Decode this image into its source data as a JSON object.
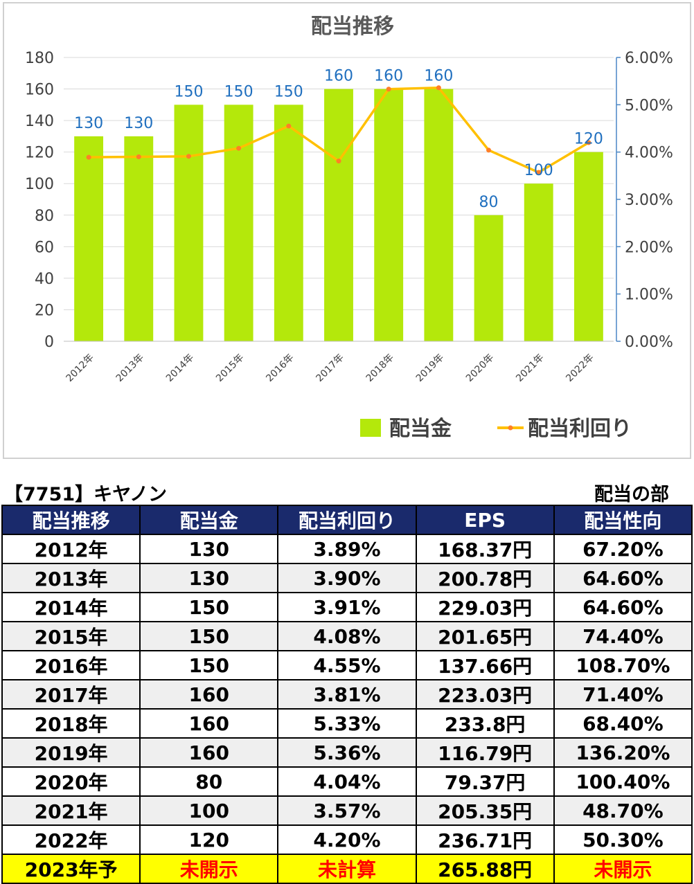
{
  "chart_data": {
    "type": "bar",
    "title": "配当推移",
    "categories": [
      "2012年",
      "2013年",
      "2014年",
      "2015年",
      "2016年",
      "2017年",
      "2018年",
      "2019年",
      "2020年",
      "2021年",
      "2022年"
    ],
    "series": [
      {
        "name": "配当金",
        "type": "bar",
        "axis": "left",
        "color": "#b4e80b",
        "values": [
          130,
          130,
          150,
          150,
          150,
          160,
          160,
          160,
          80,
          100,
          120
        ]
      },
      {
        "name": "配当利回り",
        "type": "line",
        "axis": "right",
        "color": "#ffc000",
        "marker_color": "#ff7f27",
        "values": [
          3.89,
          3.9,
          3.91,
          4.08,
          4.55,
          3.81,
          5.33,
          5.36,
          4.04,
          3.57,
          4.2
        ]
      }
    ],
    "left_axis": {
      "min": 0,
      "max": 180,
      "step": 20,
      "ticks": [
        "0",
        "20",
        "40",
        "60",
        "80",
        "100",
        "120",
        "140",
        "160",
        "180"
      ]
    },
    "right_axis": {
      "min": 0,
      "max": 6,
      "step": 1,
      "ticks": [
        "0.00%",
        "1.00%",
        "2.00%",
        "3.00%",
        "4.00%",
        "5.00%",
        "6.00%"
      ]
    },
    "grid": true,
    "legend_position": "bottom-right",
    "data_labels": [
      "130",
      "130",
      "150",
      "150",
      "150",
      "160",
      "160",
      "160",
      "80",
      "100",
      "120"
    ]
  },
  "table": {
    "code_title": "【7751】キヤノン",
    "section_title": "配当の部",
    "headers": [
      "配当推移",
      "配当金",
      "配当利回り",
      "EPS",
      "配当性向"
    ],
    "rows": [
      [
        "2012年",
        "130",
        "3.89%",
        "168.37円",
        "67.20%"
      ],
      [
        "2013年",
        "130",
        "3.90%",
        "200.78円",
        "64.60%"
      ],
      [
        "2014年",
        "150",
        "3.91%",
        "229.03円",
        "64.60%"
      ],
      [
        "2015年",
        "150",
        "4.08%",
        "201.65円",
        "74.40%"
      ],
      [
        "2016年",
        "150",
        "4.55%",
        "137.66円",
        "108.70%"
      ],
      [
        "2017年",
        "160",
        "3.81%",
        "223.03円",
        "71.40%"
      ],
      [
        "2018年",
        "160",
        "5.33%",
        "233.8円",
        "68.40%"
      ],
      [
        "2019年",
        "160",
        "5.36%",
        "116.79円",
        "136.20%"
      ],
      [
        "2020年",
        "80",
        "4.04%",
        "79.37円",
        "100.40%"
      ],
      [
        "2021年",
        "100",
        "3.57%",
        "205.35円",
        "48.70%"
      ],
      [
        "2022年",
        "120",
        "4.20%",
        "236.71円",
        "50.30%"
      ]
    ],
    "forecast_row": [
      "2023年予",
      "未開示",
      "未計算",
      "265.88円",
      "未開示"
    ]
  }
}
